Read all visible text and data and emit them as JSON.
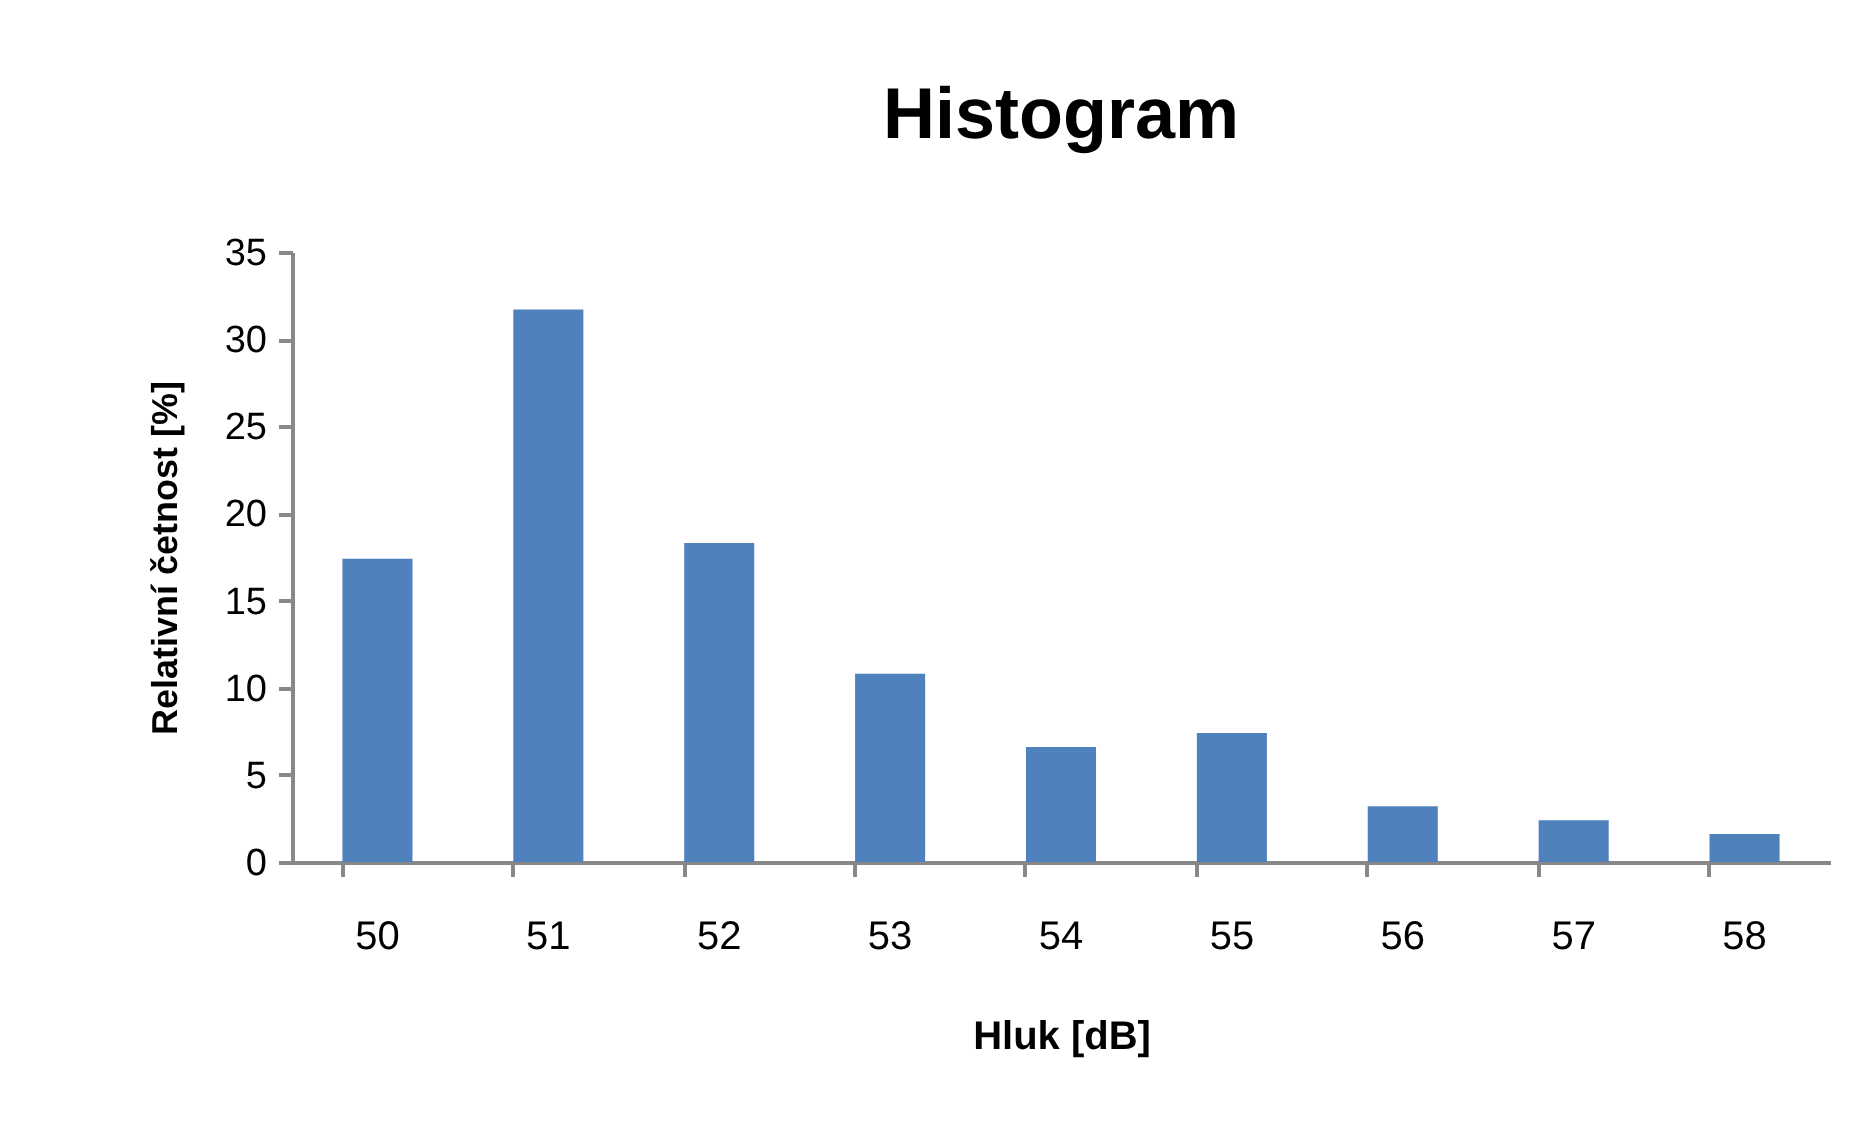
{
  "chart_data": {
    "type": "bar",
    "title": "Histogram",
    "xlabel": "Hluk [dB]",
    "ylabel": "Relativní četnost [%]",
    "categories": [
      "50",
      "51",
      "52",
      "53",
      "54",
      "55",
      "56",
      "57",
      "58"
    ],
    "values": [
      17.4,
      31.7,
      18.3,
      10.8,
      6.6,
      7.4,
      3.2,
      2.4,
      1.6
    ],
    "color": "#4f81bd",
    "ylim": [
      0,
      35
    ],
    "yticks": [
      0,
      5,
      10,
      15,
      20,
      25,
      30,
      35
    ],
    "grid": false
  }
}
